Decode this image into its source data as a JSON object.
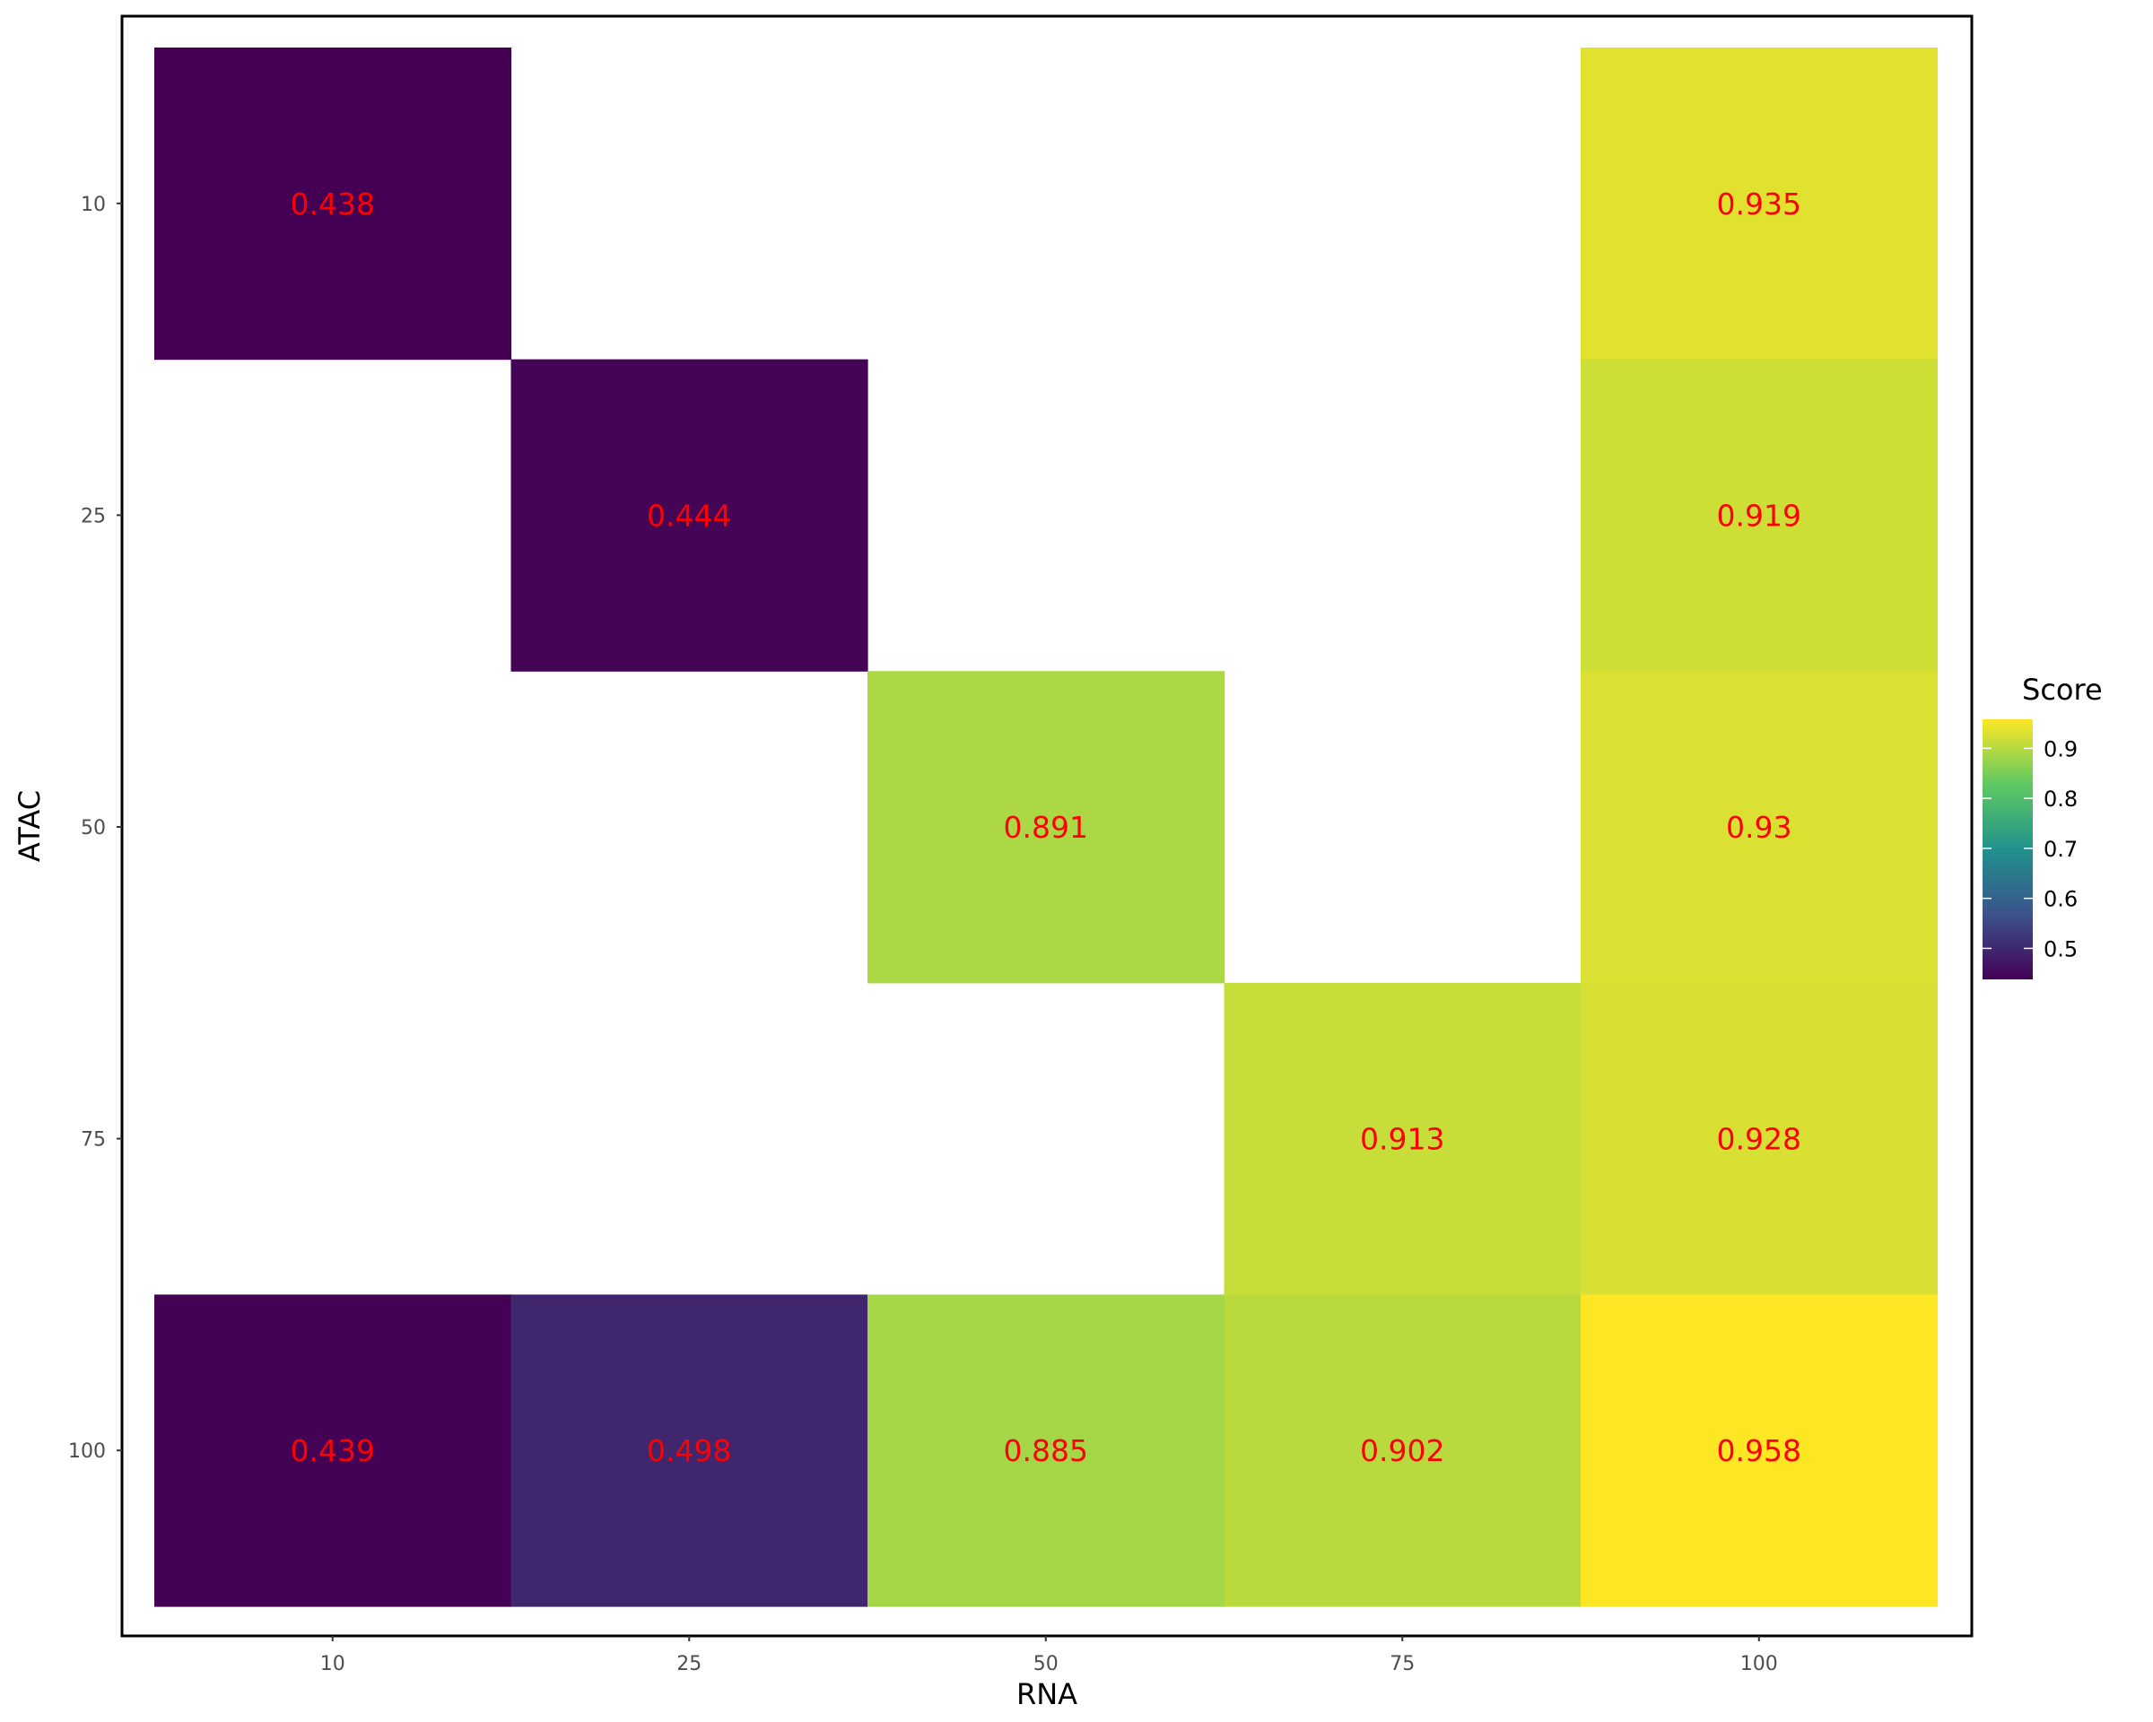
{
  "chart_data": {
    "type": "heatmap",
    "x_label": "RNA",
    "y_label": "ATAC",
    "x_categories": [
      "10",
      "25",
      "50",
      "75",
      "100"
    ],
    "y_categories": [
      "10",
      "25",
      "50",
      "75",
      "100"
    ],
    "cells": [
      {
        "x": "10",
        "y": "10",
        "value": 0.438,
        "label": "0.438"
      },
      {
        "x": "100",
        "y": "10",
        "value": 0.935,
        "label": "0.935"
      },
      {
        "x": "25",
        "y": "25",
        "value": 0.444,
        "label": "0.444"
      },
      {
        "x": "100",
        "y": "25",
        "value": 0.919,
        "label": "0.919"
      },
      {
        "x": "50",
        "y": "50",
        "value": 0.891,
        "label": "0.891"
      },
      {
        "x": "100",
        "y": "50",
        "value": 0.93,
        "label": "0.93"
      },
      {
        "x": "75",
        "y": "75",
        "value": 0.913,
        "label": "0.913"
      },
      {
        "x": "100",
        "y": "75",
        "value": 0.928,
        "label": "0.928"
      },
      {
        "x": "10",
        "y": "100",
        "value": 0.439,
        "label": "0.439"
      },
      {
        "x": "25",
        "y": "100",
        "value": 0.498,
        "label": "0.498"
      },
      {
        "x": "50",
        "y": "100",
        "value": 0.885,
        "label": "0.885"
      },
      {
        "x": "75",
        "y": "100",
        "value": 0.902,
        "label": "0.902"
      },
      {
        "x": "100",
        "y": "100",
        "value": 0.958,
        "label": "0.958"
      }
    ],
    "legend": {
      "title": "Score",
      "placement": "right",
      "range": [
        0.438,
        0.958
      ],
      "ticks": [
        {
          "value": 0.5,
          "label": "0.5"
        },
        {
          "value": 0.6,
          "label": "0.6"
        },
        {
          "value": 0.7,
          "label": "0.7"
        },
        {
          "value": 0.8,
          "label": "0.8"
        },
        {
          "value": 0.9,
          "label": "0.9"
        }
      ]
    },
    "colormap": "viridis",
    "label_color": "#ff0000",
    "grid": false
  }
}
